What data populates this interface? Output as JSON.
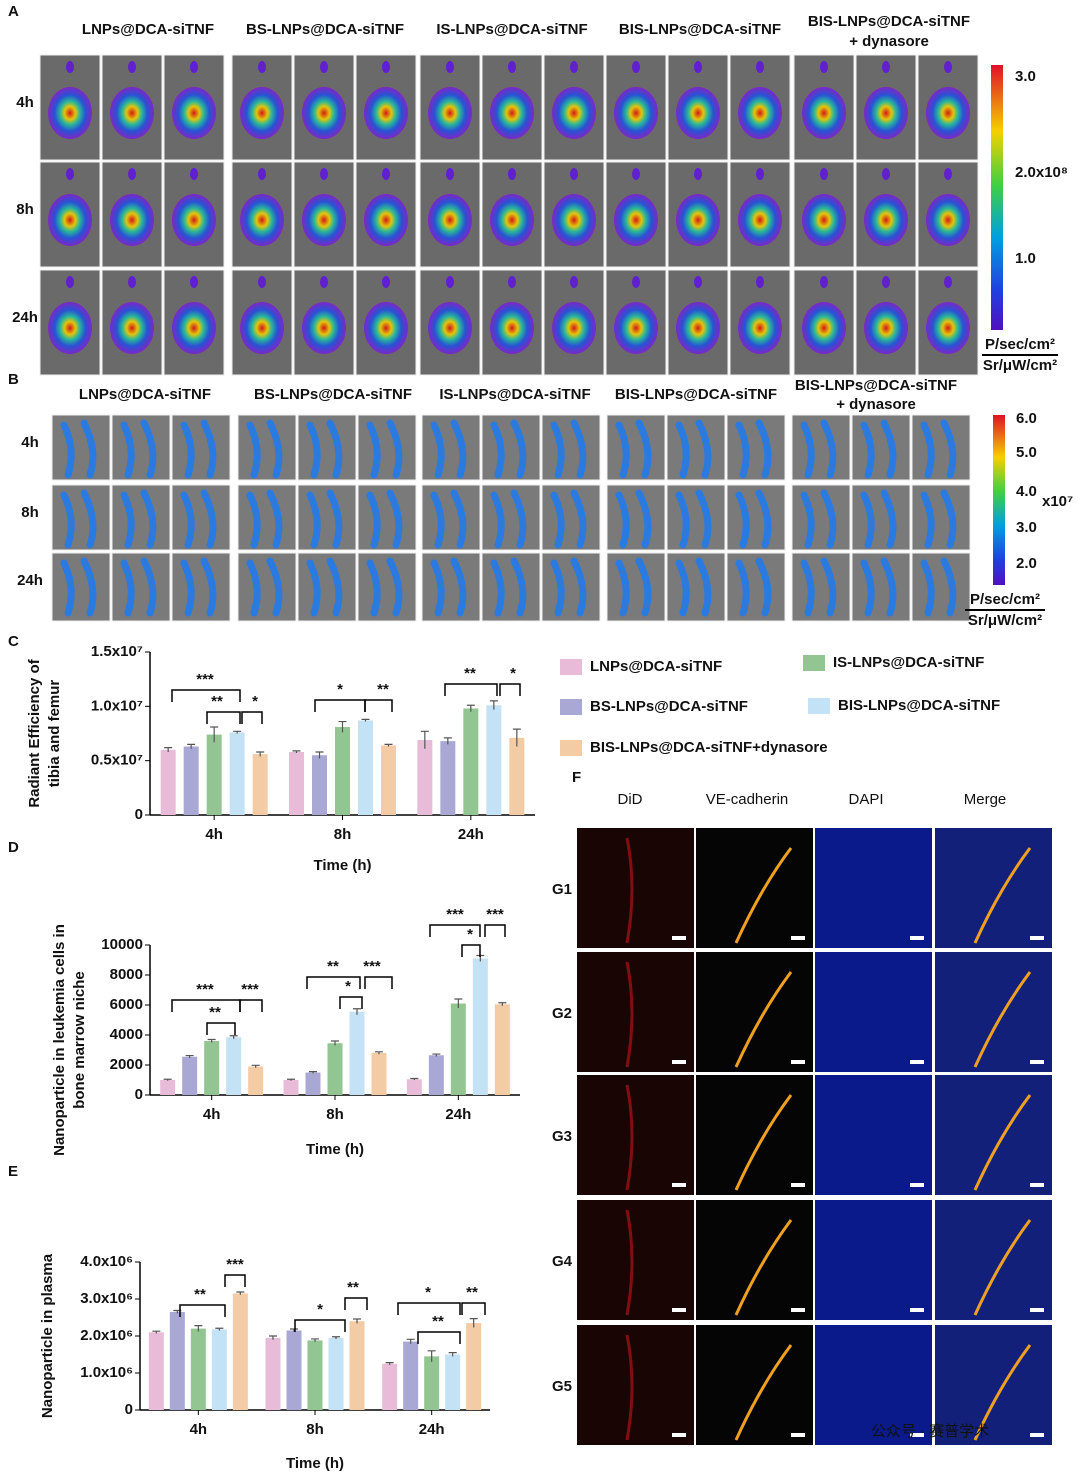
{
  "panel_labels": [
    "A",
    "B",
    "C",
    "D",
    "E",
    "F"
  ],
  "panel_a": {
    "groups": [
      "LNPs@DCA-siTNF",
      "BS-LNPs@DCA-siTNF",
      "IS-LNPs@DCA-siTNF",
      "BIS-LNPs@DCA-siTNF",
      "BIS-LNPs@DCA-siTNF",
      "+ dynasore"
    ],
    "times": [
      "4h",
      "8h",
      "24h"
    ],
    "colorbar_ticks": [
      "3.0",
      "2.0x10⁸",
      "1.0"
    ],
    "unit": [
      "P/sec/cm²",
      "Sr/μW/cm²"
    ]
  },
  "panel_b": {
    "groups": [
      "LNPs@DCA-siTNF",
      "BS-LNPs@DCA-siTNF",
      "IS-LNPs@DCA-siTNF",
      "BIS-LNPs@DCA-siTNF",
      "BIS-LNPs@DCA-siTNF",
      "+ dynasore"
    ],
    "times": [
      "4h",
      "8h",
      "24h"
    ],
    "colorbar_ticks": [
      "6.0",
      "5.0",
      "4.0",
      "3.0",
      "2.0"
    ],
    "colorbar_scale": "x10⁷",
    "unit": [
      "P/sec/cm²",
      "Sr/μW/cm²"
    ]
  },
  "panel_f": {
    "channels": [
      "DiD",
      "VE-cadherin",
      "DAPI",
      "Merge"
    ],
    "groups": [
      "G1",
      "G2",
      "G3",
      "G4",
      "G5"
    ]
  },
  "watermark": "公众号 · 赛普学术",
  "chart_data": [
    {
      "type": "bar",
      "y_label": [
        "Radiant Efficiency of",
        "tibia and femur"
      ],
      "x_label": "Time (h)",
      "categories": [
        "4h",
        "8h",
        "24h"
      ],
      "series": [
        {
          "name": "LNPs@DCA-siTNF",
          "color": "#e8bcd8",
          "values": [
            6000000,
            5800000,
            6900000
          ],
          "errors": [
            200000,
            100000,
            800000
          ]
        },
        {
          "name": "BS-LNPs@DCA-siTNF",
          "color": "#a9a8d4",
          "values": [
            6300000,
            5500000,
            6800000
          ],
          "errors": [
            200000,
            300000,
            300000
          ]
        },
        {
          "name": "IS-LNPs@DCA-siTNF",
          "color": "#92c592",
          "values": [
            7400000,
            8100000,
            9800000
          ],
          "errors": [
            700000,
            500000,
            300000
          ]
        },
        {
          "name": "BIS-LNPs@DCA-siTNF",
          "color": "#c3e2f5",
          "values": [
            7600000,
            8700000,
            10100000
          ],
          "errors": [
            100000,
            100000,
            400000
          ]
        },
        {
          "name": "BIS-LNPs@DCA-siTNF+dynasore",
          "color": "#f3cba4",
          "values": [
            5600000,
            6400000,
            7100000
          ],
          "errors": [
            200000,
            100000,
            800000
          ]
        }
      ],
      "ylim": [
        0,
        15000000
      ],
      "yticks": [
        0,
        {
          "value": 5000000,
          "label": "0.5x10⁷"
        },
        {
          "value": 10000000,
          "label": "1.0x10⁷"
        },
        {
          "value": 15000000,
          "label": "1.5x10⁷"
        }
      ],
      "annotations": [
        "***",
        "**",
        "*",
        "*",
        "**",
        "**",
        "*"
      ]
    },
    {
      "type": "bar",
      "y_label": [
        "Nanoparticle in leukemia cells in",
        "bone marrow niche"
      ],
      "x_label": "Time (h)",
      "categories": [
        "4h",
        "8h",
        "24h"
      ],
      "series": [
        {
          "color": "#e8bcd8",
          "values": [
            1000,
            1000,
            1050
          ],
          "errors": [
            50,
            50,
            50
          ]
        },
        {
          "color": "#a9a8d4",
          "values": [
            2550,
            1500,
            2650
          ],
          "errors": [
            80,
            60,
            80
          ]
        },
        {
          "color": "#92c592",
          "values": [
            3600,
            3450,
            6100
          ],
          "errors": [
            100,
            150,
            300
          ]
        },
        {
          "color": "#c3e2f5",
          "values": [
            3850,
            5550,
            9100
          ],
          "errors": [
            100,
            200,
            200
          ]
        },
        {
          "color": "#f3cba4",
          "values": [
            1900,
            2800,
            6050
          ],
          "errors": [
            80,
            80,
            100
          ]
        }
      ],
      "ylim": [
        0,
        10000
      ],
      "yticks": [
        0,
        2000,
        4000,
        6000,
        8000,
        10000
      ],
      "annotations": [
        "***",
        "**",
        "***",
        "**",
        "*",
        "***",
        "***",
        "*",
        "***"
      ]
    },
    {
      "type": "bar",
      "y_label": [
        "Nanoparticle in plasma"
      ],
      "x_label": "Time (h)",
      "categories": [
        "4h",
        "8h",
        "24h"
      ],
      "series": [
        {
          "color": "#e8bcd8",
          "values": [
            2100000,
            1950000,
            1250000
          ],
          "errors": [
            30000,
            50000,
            30000
          ]
        },
        {
          "color": "#a9a8d4",
          "values": [
            2650000,
            2150000,
            1850000
          ],
          "errors": [
            40000,
            40000,
            60000
          ]
        },
        {
          "color": "#92c592",
          "values": [
            2200000,
            1880000,
            1450000
          ],
          "errors": [
            80000,
            40000,
            150000
          ]
        },
        {
          "color": "#c3e2f5",
          "values": [
            2180000,
            1950000,
            1500000
          ],
          "errors": [
            30000,
            30000,
            50000
          ]
        },
        {
          "color": "#f3cba4",
          "values": [
            3150000,
            2400000,
            2350000
          ],
          "errors": [
            40000,
            60000,
            120000
          ]
        }
      ],
      "ylim": [
        0,
        4000000
      ],
      "yticks": [
        0,
        {
          "value": 1000000,
          "label": "1.0x10⁶"
        },
        {
          "value": 2000000,
          "label": "2.0x10⁶"
        },
        {
          "value": 3000000,
          "label": "3.0x10⁶"
        },
        {
          "value": 4000000,
          "label": "4.0x10⁶"
        }
      ],
      "annotations": [
        "**",
        "***",
        "*",
        "**",
        "*",
        "**",
        "**"
      ]
    }
  ]
}
